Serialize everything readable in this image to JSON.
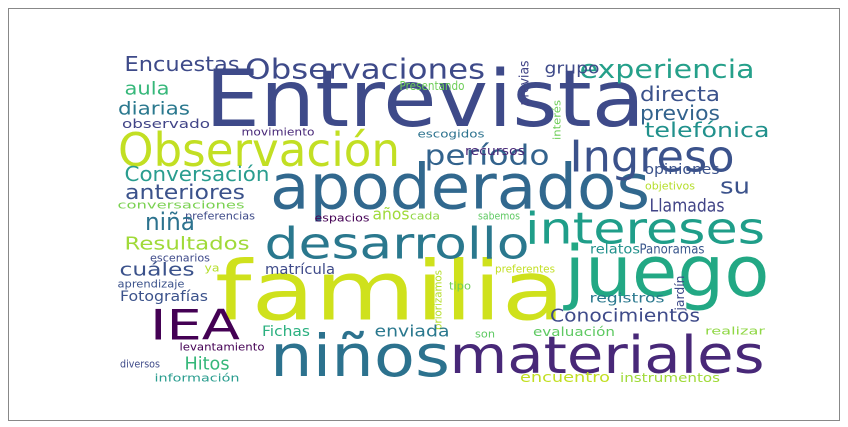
{
  "words": [
    {
      "text": "Entrevista",
      "color": "#3e4a89"
    },
    {
      "text": "familia",
      "color": "#cfe11c"
    },
    {
      "text": "apoderados",
      "color": "#31688e"
    },
    {
      "text": "juego",
      "color": "#22a884"
    },
    {
      "text": "niños",
      "color": "#2c728e"
    },
    {
      "text": "materiales",
      "color": "#482878"
    },
    {
      "text": "Observación",
      "color": "#c2df23"
    },
    {
      "text": "desarrollo",
      "color": "#2a788e"
    },
    {
      "text": "intereses",
      "color": "#1f9e89"
    },
    {
      "text": "Ingreso",
      "color": "#3b528b"
    },
    {
      "text": "IEA",
      "color": "#440154"
    },
    {
      "text": "Observaciones",
      "color": "#3e4a89"
    },
    {
      "text": "experiencia",
      "color": "#25a08a"
    },
    {
      "text": "período",
      "color": "#33638d"
    },
    {
      "text": "Encuestas",
      "color": "#3e4a89"
    },
    {
      "text": "aula",
      "color": "#35b779"
    },
    {
      "text": "diarias",
      "color": "#2a788e"
    },
    {
      "text": "observado",
      "color": "#414487"
    },
    {
      "text": "movimiento",
      "color": "#482878"
    },
    {
      "text": "escogidos",
      "color": "#2c728e"
    },
    {
      "text": "directa",
      "color": "#3b528b"
    },
    {
      "text": "previos",
      "color": "#33638d"
    },
    {
      "text": "telefónica",
      "color": "#21918c"
    },
    {
      "text": "grupo",
      "color": "#3e4a89"
    },
    {
      "text": "previas",
      "color": "#414487"
    },
    {
      "text": "Presentando",
      "color": "#6ece58"
    },
    {
      "text": "interés",
      "color": "#6ece58"
    },
    {
      "text": "recursos",
      "color": "#482878"
    },
    {
      "text": "Conversación",
      "color": "#2a9d8f"
    },
    {
      "text": "anteriores",
      "color": "#3b528b"
    },
    {
      "text": "conversaciones",
      "color": "#7ad151"
    },
    {
      "text": "preferencias",
      "color": "#3e4a89"
    },
    {
      "text": "espacios",
      "color": "#440154"
    },
    {
      "text": "años",
      "color": "#a0da39"
    },
    {
      "text": "cada",
      "color": "#8fd744"
    },
    {
      "text": "sabemos",
      "color": "#5ec962"
    },
    {
      "text": "su",
      "color": "#3b528b"
    },
    {
      "text": "opiniones",
      "color": "#3b528b"
    },
    {
      "text": "objetivos",
      "color": "#b5de2b"
    },
    {
      "text": "niña",
      "color": "#2c728e"
    },
    {
      "text": "Llamadas",
      "color": "#414487"
    },
    {
      "text": "Resultados",
      "color": "#a0da39"
    },
    {
      "text": "relatos",
      "color": "#21918c"
    },
    {
      "text": "Panoramas",
      "color": "#39568c"
    },
    {
      "text": "cuáles",
      "color": "#3b528b"
    },
    {
      "text": "escenarios",
      "color": "#3e4a89"
    },
    {
      "text": "ya",
      "color": "#b5de2b"
    },
    {
      "text": "matrícula",
      "color": "#3e4a89"
    },
    {
      "text": "aprendizaje",
      "color": "#3b528b"
    },
    {
      "text": "Fotografías",
      "color": "#3b528b"
    },
    {
      "text": "priorizamos",
      "color": "#b5de2b"
    },
    {
      "text": "preferentes",
      "color": "#c2df23"
    },
    {
      "text": "tipo",
      "color": "#6ece58"
    },
    {
      "text": "registros",
      "color": "#2a788e"
    },
    {
      "text": "jardín",
      "color": "#3e4a89"
    },
    {
      "text": "Conocimientos",
      "color": "#3e4a89"
    },
    {
      "text": "Fichas",
      "color": "#2ab07f"
    },
    {
      "text": "enviada",
      "color": "#2a788e"
    },
    {
      "text": "evaluación",
      "color": "#5ec962"
    },
    {
      "text": "realizar",
      "color": "#8fd744"
    },
    {
      "text": "son",
      "color": "#5ec962"
    },
    {
      "text": "levantamiento",
      "color": "#440154"
    },
    {
      "text": "Hitos",
      "color": "#35b779"
    },
    {
      "text": "diversos",
      "color": "#3e4a89"
    },
    {
      "text": "información",
      "color": "#2a9d8f"
    },
    {
      "text": "encuentro",
      "color": "#c2df23"
    },
    {
      "text": "instrumentos",
      "color": "#a0da39"
    }
  ]
}
